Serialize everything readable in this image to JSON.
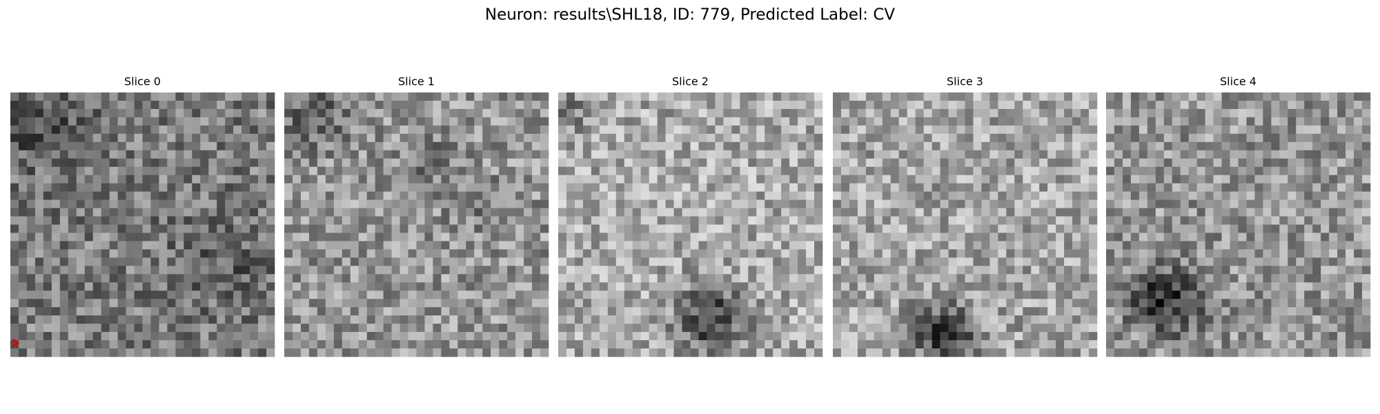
{
  "title": "Neuron: results\\SHL18, ID: 779, Predicted Label: CV",
  "panels": [
    {
      "title": "Slice 0"
    },
    {
      "title": "Slice 1"
    },
    {
      "title": "Slice 2"
    },
    {
      "title": "Slice 3"
    },
    {
      "title": "Slice 4"
    }
  ]
}
